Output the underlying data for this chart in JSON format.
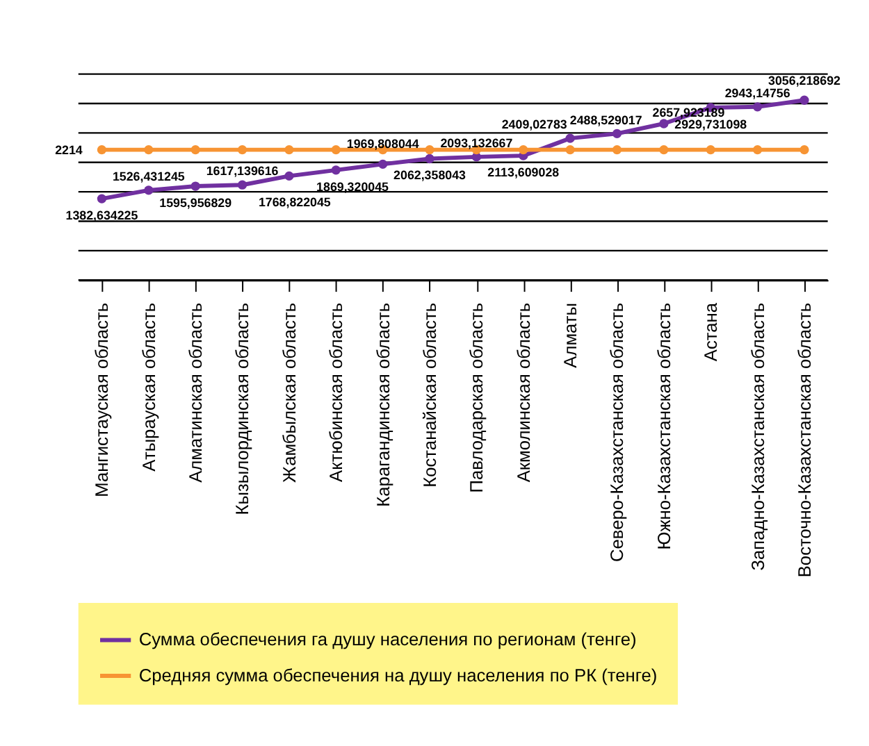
{
  "chart_data": {
    "type": "line",
    "categories": [
      "Мангистауская область",
      "Атырауская область",
      "Алматинская область",
      "Кызылординская область",
      "Жамбылская область",
      "Актюбинская область",
      "Карагандинская область",
      "Костанайская область",
      "Павлодарская область",
      "Акмолинская область",
      "Алматы",
      "Северо-Казахстанская область",
      "Южно-Казахстанская область",
      "Астана",
      "Западно-Казахстанская область",
      "Восточно-Казахстанская область"
    ],
    "series": [
      {
        "name": "Сумма обеспечения га душу населения по регионам (тенге)",
        "color": "#7030a0",
        "values": [
          1382.634225,
          1526.431245,
          1595.956829,
          1617.139616,
          1768.822045,
          1869.320045,
          1969.808044,
          2062.358043,
          2093.132667,
          2113.609028,
          2409.02783,
          2488.529017,
          2657.923189,
          2929.731098,
          2943.14756,
          3056.218692
        ],
        "value_labels": [
          "1382,634225",
          "1526,431245",
          "1595,956829",
          "1617,139616",
          "1768,822045",
          "1869,320045",
          "1969,808044",
          "2062,358043",
          "2093,132667",
          "2113,609028",
          "2409,02783",
          "2488,529017",
          "2657,923189",
          "2929,731098",
          "2943,14756",
          "3056,218692"
        ]
      },
      {
        "name": "Средняя сумма обеспечения на душу населения по РК (тенге)",
        "color": "#f79433",
        "values": [
          2214,
          2214,
          2214,
          2214,
          2214,
          2214,
          2214,
          2214,
          2214,
          2214,
          2214,
          2214,
          2214,
          2214,
          2214,
          2214
        ],
        "value_labels": [
          "2214",
          null,
          null,
          null,
          null,
          null,
          null,
          null,
          null,
          null,
          null,
          null,
          null,
          null,
          null,
          null
        ]
      }
    ],
    "ylim": [
      0,
      3500
    ],
    "yticks": [
      0,
      500,
      1000,
      1500,
      2000,
      2500,
      3000,
      3500
    ],
    "grid": "y",
    "tick_labels": "x",
    "legend": "bottom",
    "marker": "circle",
    "line_style": "solid"
  }
}
